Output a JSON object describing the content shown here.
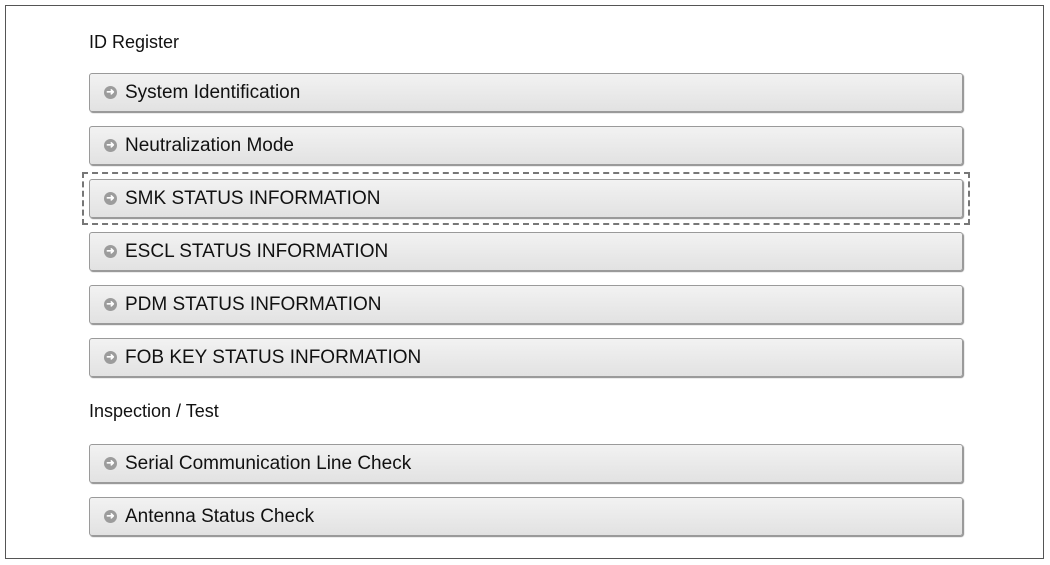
{
  "sections": [
    {
      "title": "ID Register",
      "items": [
        "System Identification",
        "Neutralization Mode",
        "SMK STATUS INFORMATION",
        "ESCL STATUS INFORMATION",
        "PDM STATUS INFORMATION",
        "FOB KEY STATUS INFORMATION"
      ]
    },
    {
      "title": "Inspection / Test",
      "items": [
        "Serial Communication Line Check",
        "Antenna Status Check"
      ]
    }
  ],
  "highlighted_item": "SMK STATUS INFORMATION",
  "item_icon": "arrow-right-circle-icon"
}
